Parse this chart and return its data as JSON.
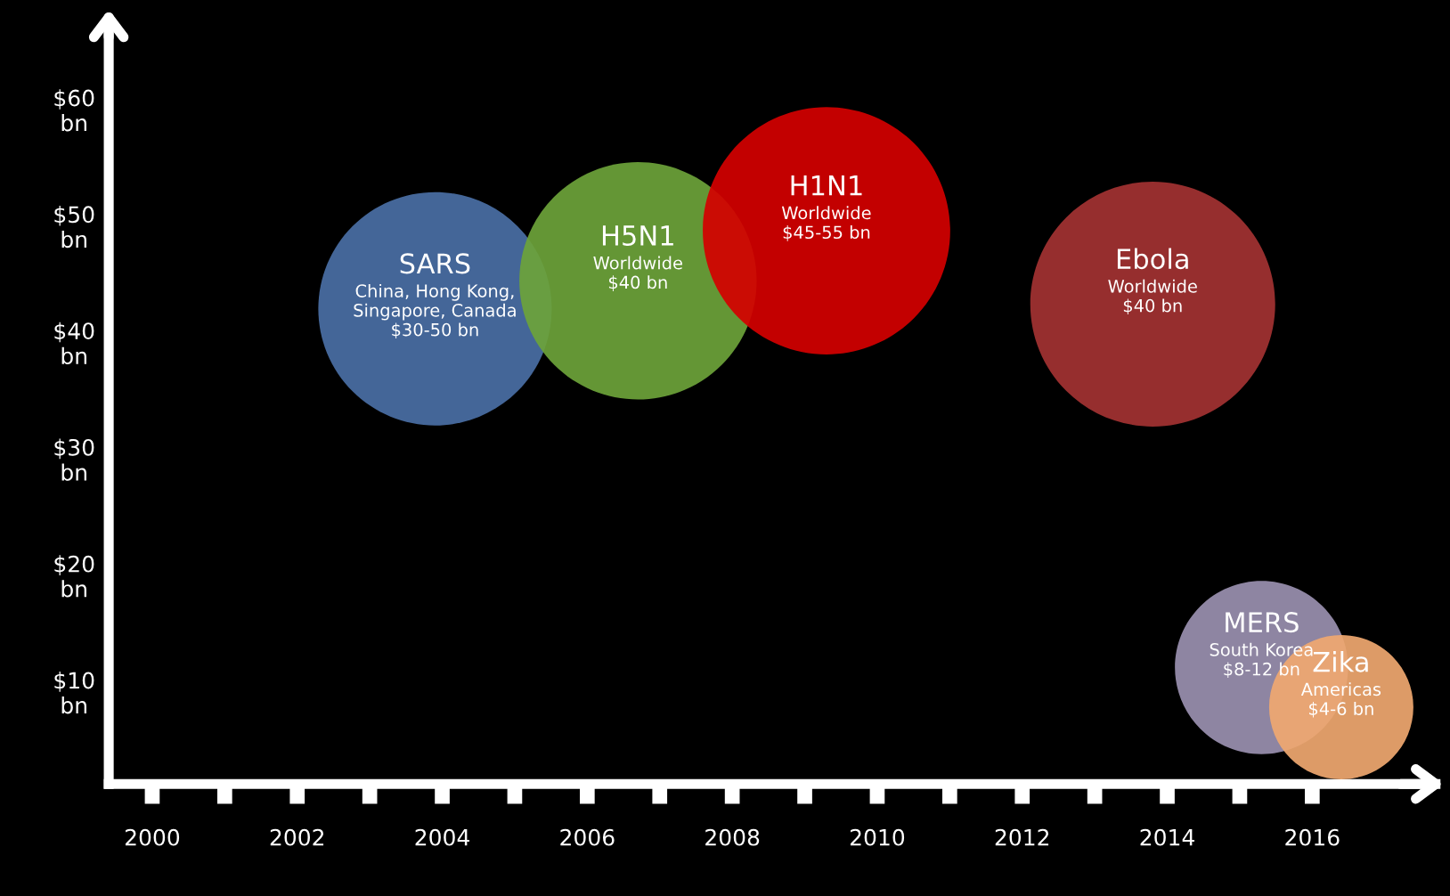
{
  "chart_data": {
    "type": "bubble",
    "xlim": [
      1999.4,
      2017.7
    ],
    "ylim": [
      2,
      67
    ],
    "xticks": [
      2000,
      {
        "value": 2001,
        "label": null
      },
      2002,
      {
        "value": 2003,
        "label": null
      },
      2004,
      {
        "value": 2005,
        "label": null
      },
      2006,
      {
        "value": 2007,
        "label": null
      },
      2008,
      {
        "value": 2009,
        "label": null
      },
      2010,
      {
        "value": 2011,
        "label": null
      },
      2012,
      {
        "value": 2013,
        "label": null
      },
      2014,
      {
        "value": 2015,
        "label": null
      },
      2016
    ],
    "yticks": [
      {
        "value": 10,
        "label": "$10 bn"
      },
      {
        "value": 20,
        "label": "$20 bn"
      },
      {
        "value": 30,
        "label": "$30 bn"
      },
      {
        "value": 40,
        "label": "$40 bn"
      },
      {
        "value": 50,
        "label": "$50 bn"
      },
      {
        "value": 60,
        "label": "$60 bn"
      }
    ],
    "grid": false,
    "legend": false,
    "series": [
      {
        "name": "SARS",
        "color": "#4a6fa5",
        "x": [
          2003.9
        ],
        "values": [
          42.8
        ],
        "sizes": [
          0.89
        ]
      },
      {
        "name": "H5N1",
        "color": "#6ca33a",
        "x": [
          2006.7
        ],
        "values": [
          45.2
        ],
        "sizes": [
          0.92
        ]
      },
      {
        "name": "H1N1",
        "color": "#d40000",
        "x": [
          2009.3
        ],
        "values": [
          49.5
        ],
        "sizes": [
          1
        ]
      },
      {
        "name": "Ebola",
        "color": "#a33232",
        "x": [
          2013.8
        ],
        "values": [
          43.2
        ],
        "sizes": [
          0.98
        ]
      },
      {
        "name": "MERS",
        "color": "#9a90b0",
        "x": [
          2015.3
        ],
        "values": [
          12
        ],
        "sizes": [
          0.49
        ]
      },
      {
        "name": "Zika",
        "color": "#f0a870",
        "x": [
          2016.4
        ],
        "values": [
          8.6
        ],
        "sizes": [
          0.34
        ]
      }
    ],
    "annotations": [
      {
        "text": "China, Hong Kong,\nSingapore, Canada\n$30-50 bn",
        "x": 2003.9,
        "y": 42.8
      },
      {
        "text": "Worldwide\n$40 bn",
        "x": 2006.7,
        "y": 45.2
      },
      {
        "text": "Worldwide\n$45-55 bn",
        "x": 2009.3,
        "y": 49.5
      },
      {
        "text": "Worldwide\n$40 bn",
        "x": 2013.8,
        "y": 43.2
      },
      {
        "text": "South Korea\n$8-12 bn",
        "x": 2015.3,
        "y": 12
      },
      {
        "text": "Americas\n$4-6 bn",
        "x": 2016.4,
        "y": 8.6
      }
    ]
  }
}
